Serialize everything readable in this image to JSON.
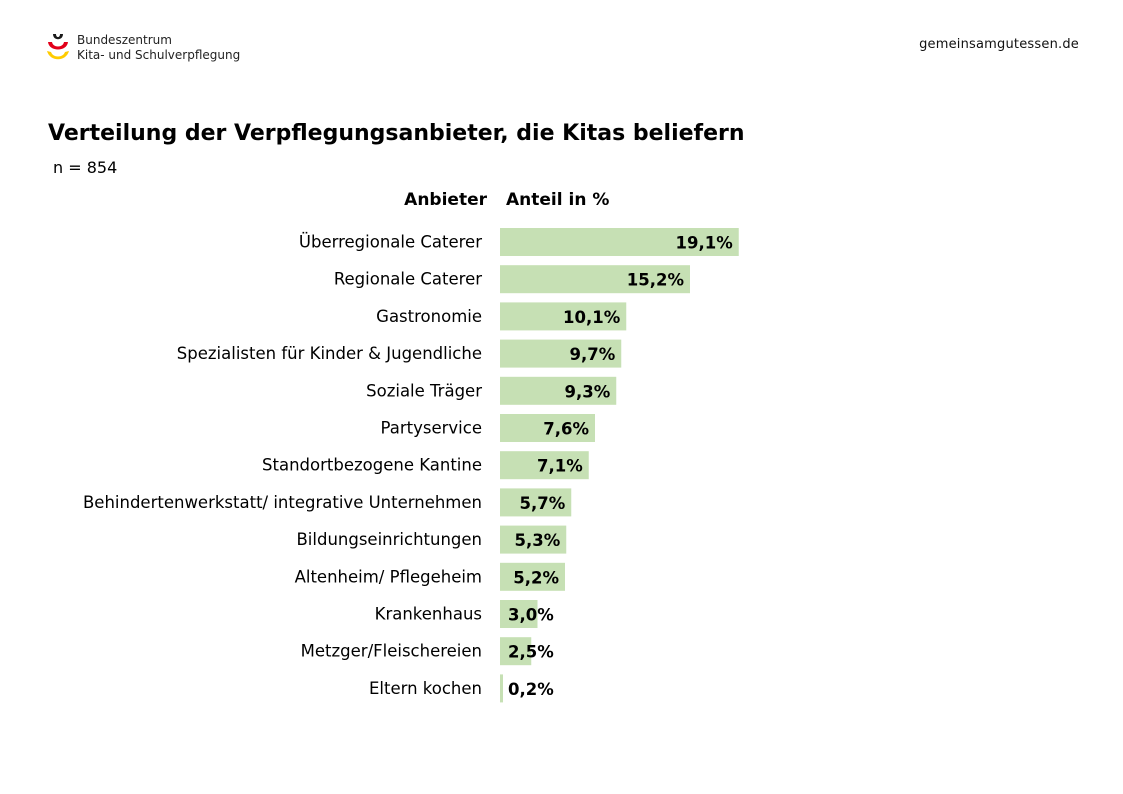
{
  "header": {
    "org_line1": "Bundeszentrum",
    "org_line2": "Kita- und Schulverpflegung",
    "site": "gemeinsamgutessen.de"
  },
  "colors": {
    "bar": "#c6e0b4",
    "logo_black": "#1a1a1a",
    "logo_red": "#e2001a",
    "logo_gold": "#ffcc00"
  },
  "chart_data": {
    "type": "bar",
    "orientation": "horizontal",
    "title": "Verteilung der Verpflegungsanbieter, die Kitas beliefern",
    "subtitle": "n = 854",
    "category_header": "Anbieter",
    "value_header": "Anteil in %",
    "categories": [
      "Überregionale Caterer",
      "Regionale Caterer",
      "Gastronomie",
      "Spezialisten für Kinder & Jugendliche",
      "Soziale Träger",
      "Partyservice",
      "Standortbezogene Kantine",
      "Behindertenwerkstatt/ integrative Unternehmen",
      "Bildungseinrichtungen",
      "Altenheim/ Pflegeheim",
      "Krankenhaus",
      "Metzger/Fleischereien",
      "Eltern kochen"
    ],
    "values": [
      19.1,
      15.2,
      10.1,
      9.7,
      9.3,
      7.6,
      7.1,
      5.7,
      5.3,
      5.2,
      3.0,
      2.5,
      0.2
    ],
    "labels": [
      "19,1%",
      "15,2%",
      "10,1%",
      "9,7%",
      "9,3%",
      "7,6%",
      "7,1%",
      "5,7%",
      "5,3%",
      "5,2%",
      "3,0%",
      "2,5%",
      "0,2%"
    ],
    "xlim": [
      0,
      20
    ],
    "grid": false,
    "legend": "none"
  }
}
